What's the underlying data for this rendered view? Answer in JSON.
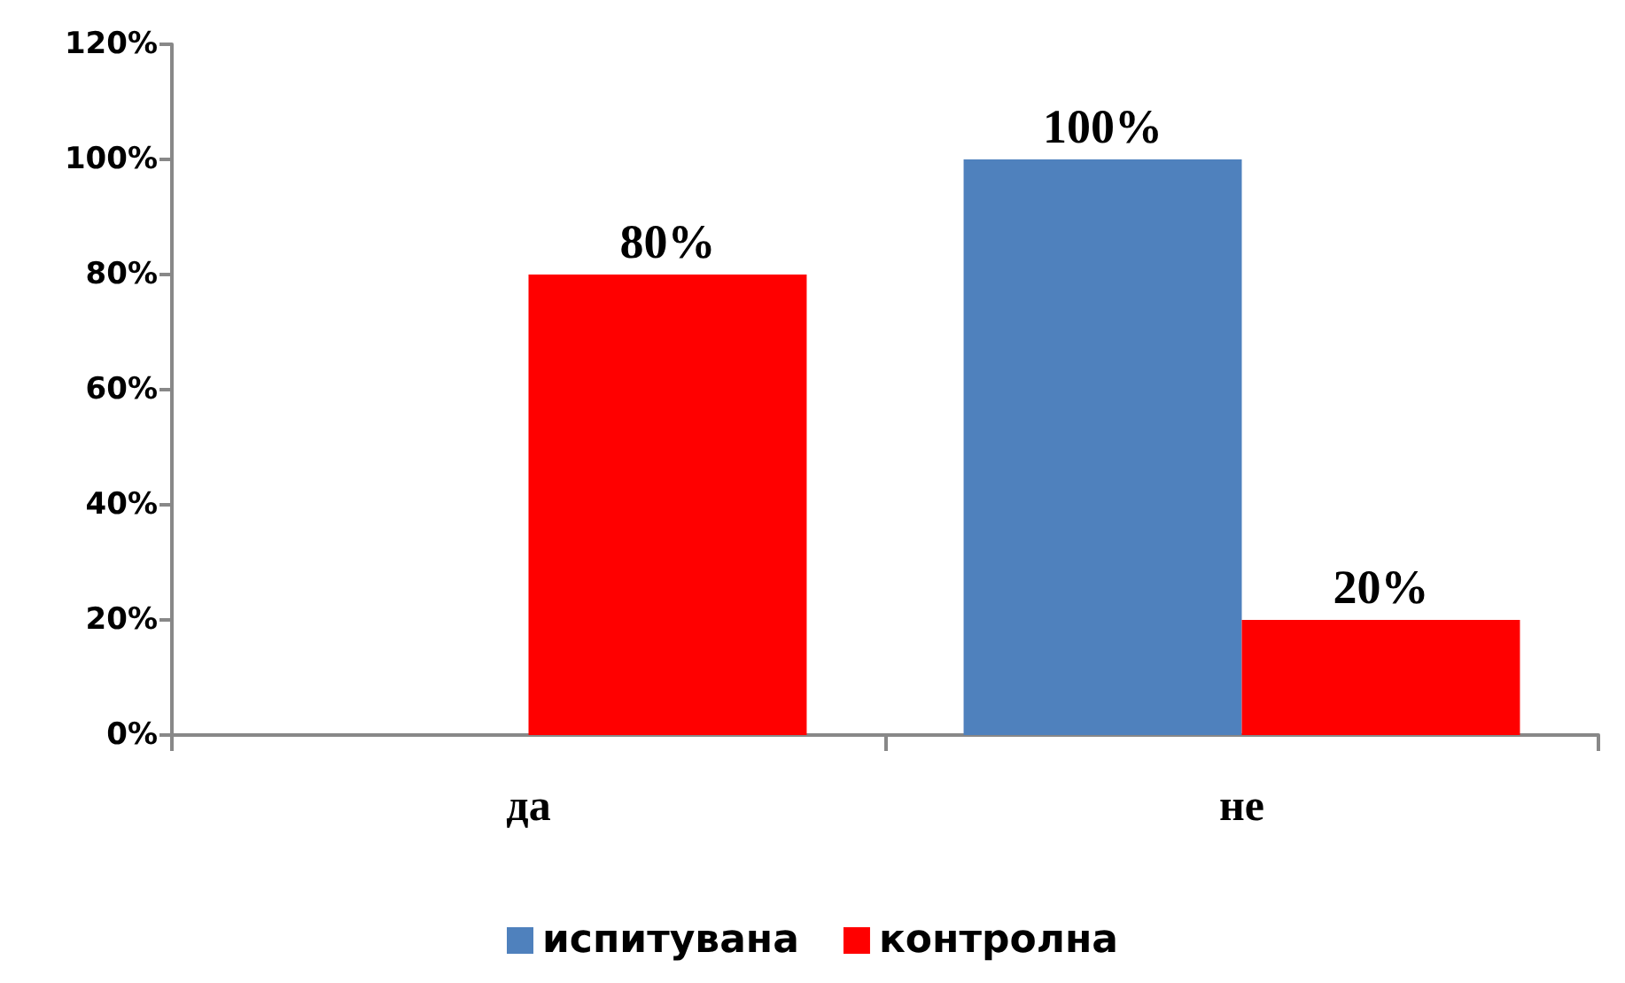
{
  "chart_data": {
    "type": "bar",
    "categories": [
      "да",
      "не"
    ],
    "series": [
      {
        "name": "испитувана",
        "color": "#4f81bd",
        "values": [
          0,
          100
        ],
        "value_labels": [
          null,
          "100%"
        ]
      },
      {
        "name": "контролна",
        "color": "#ff0000",
        "values": [
          80,
          20
        ],
        "value_labels": [
          "80%",
          "20%"
        ]
      }
    ],
    "ylim": [
      0,
      120
    ],
    "yticks": [
      {
        "value": 0,
        "label": "0%"
      },
      {
        "value": 20,
        "label": "20%"
      },
      {
        "value": 40,
        "label": "40%"
      },
      {
        "value": 60,
        "label": "60%"
      },
      {
        "value": 80,
        "label": "80%"
      },
      {
        "value": 100,
        "label": "100%"
      },
      {
        "value": 120,
        "label": "120%"
      }
    ],
    "grid": false,
    "legend": "bottom"
  }
}
